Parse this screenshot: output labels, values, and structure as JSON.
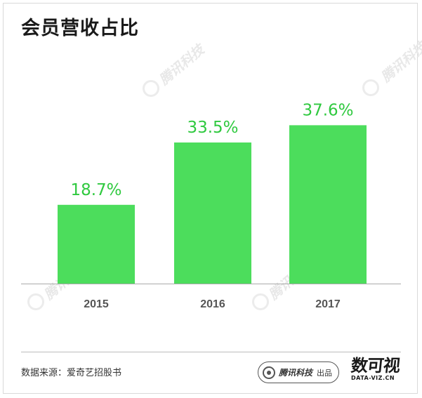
{
  "title": "会员营收占比",
  "source": "数据来源：爱奇艺招股书",
  "brand": {
    "name": "腾讯科技",
    "suffix": "出品"
  },
  "dataviz": {
    "chars": "数可视",
    "url": "DATA-VIZ.CN"
  },
  "watermark": "腾讯科技",
  "colors": {
    "bar": "#4cdd5c",
    "label": "#2fc93f",
    "tick": "#555555",
    "axis": "#aaaaaa"
  },
  "chart_data": {
    "type": "bar",
    "categories": [
      "2015",
      "2016",
      "2017"
    ],
    "values": [
      18.7,
      33.5,
      37.6
    ],
    "value_labels": [
      "18.7%",
      "33.5%",
      "37.6%"
    ],
    "ylim": [
      0,
      50
    ]
  }
}
